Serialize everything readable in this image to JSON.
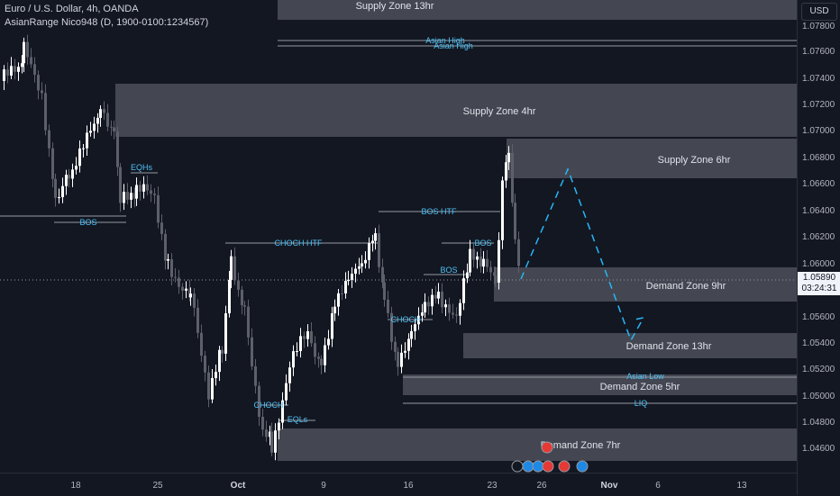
{
  "header": {
    "symbol_line": "Euro / U.S. Dollar, 4h, OANDA",
    "indicator_line": "AsianRange Nico948 (D, 1900-0100:1234567)"
  },
  "price_axis": {
    "currency": "USD",
    "ticks": [
      "1.07800",
      "1.07600",
      "1.07400",
      "1.07200",
      "1.07000",
      "1.06800",
      "1.06600",
      "1.06400",
      "1.06200",
      "1.06000",
      "1.05600",
      "1.05400",
      "1.05200",
      "1.05000",
      "1.04800",
      "1.04600"
    ],
    "current_price": "1.05890",
    "countdown": "03:24:31"
  },
  "time_axis": {
    "labels": [
      "18",
      "25",
      "Oct",
      "9",
      "16",
      "23",
      "26",
      "Nov",
      "6",
      "13"
    ]
  },
  "zones": {
    "supply_13hr": "Supply Zone 13hr",
    "supply_4hr": "Supply Zone 4hr",
    "supply_6hr": "Supply Zone 6hr",
    "demand_9hr": "Demand Zone 9hr",
    "demand_13hr": "Demand Zone 13hr",
    "demand_5hr": "Demand Zone 5hr",
    "demand_7hr": "Demand Zone 7hr"
  },
  "annotations": {
    "asian_high_1": "Asian High",
    "asian_high_2": "Asian High",
    "asian_low": "Asian Low",
    "liq": "LIQ",
    "bos_1": "BOS",
    "bos_2": "BOS",
    "bos_3": "BOS",
    "bos_htf": "BOS HTF",
    "choch_htf": "CHOCH HTF",
    "choch_1": "CHOCH",
    "choch_2": "CHOCH",
    "eqhs": "EQHs",
    "eqls": "EQLs"
  },
  "colors": {
    "background": "#131722",
    "bull": "#ffffff",
    "bear": "#5d606b",
    "zone": "#4a4d56",
    "annotation": "#4fc3f7",
    "projection": "#29b6f6"
  }
}
